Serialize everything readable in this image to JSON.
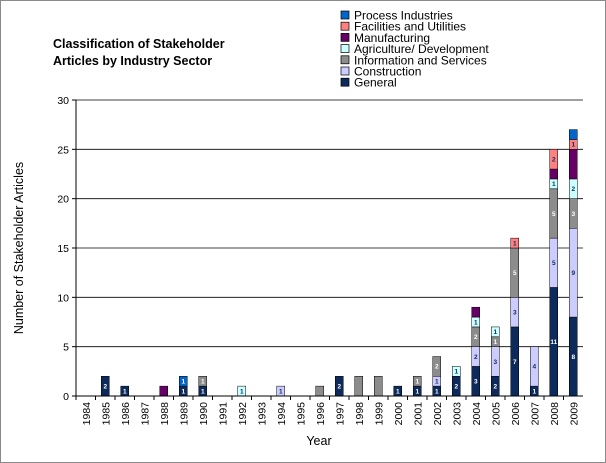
{
  "chart_data": {
    "type": "bar",
    "stacked": true,
    "title_lines": [
      "Classification of Stakeholder",
      "Articles by Industry Sector"
    ],
    "xlabel": "Year",
    "ylabel": "Number of Stakeholder Articles",
    "ylim": [
      0,
      30
    ],
    "yticks": [
      "0",
      "5",
      "10",
      "15",
      "20",
      "25",
      "30"
    ],
    "grid": true,
    "legend_position": "top-right",
    "categories": [
      "1984",
      "1985",
      "1986",
      "1987",
      "1988",
      "1989",
      "1990",
      "1991",
      "1992",
      "1993",
      "1994",
      "1995",
      "1996",
      "1997",
      "1998",
      "1999",
      "2000",
      "2001",
      "2002",
      "2003",
      "2004",
      "2005",
      "2006",
      "2007",
      "2008",
      "2009"
    ],
    "series": [
      {
        "name": "General",
        "color": "#0d2a5c",
        "values": [
          0,
          2,
          1,
          0,
          0,
          1,
          1,
          0,
          0,
          0,
          0,
          0,
          0,
          2,
          0,
          0,
          1,
          1,
          1,
          2,
          3,
          2,
          7,
          1,
          11,
          8
        ]
      },
      {
        "name": "Construction",
        "color": "#ccccff",
        "values": [
          0,
          0,
          0,
          0,
          0,
          0,
          0,
          0,
          0,
          0,
          1,
          0,
          0,
          0,
          0,
          0,
          0,
          0,
          1,
          0,
          2,
          3,
          3,
          4,
          5,
          9
        ]
      },
      {
        "name": "Information and Services",
        "color": "#8c8c8c",
        "values": [
          0,
          0,
          0,
          0,
          0,
          0,
          1,
          0,
          0,
          0,
          0,
          0,
          1,
          0,
          2,
          2,
          0,
          1,
          2,
          0,
          2,
          1,
          5,
          0,
          5,
          3
        ]
      },
      {
        "name": "Agriculture/ Development",
        "color": "#ccffff",
        "values": [
          0,
          0,
          0,
          0,
          0,
          0,
          0,
          0,
          1,
          0,
          0,
          0,
          0,
          0,
          0,
          0,
          0,
          0,
          0,
          1,
          1,
          1,
          0,
          0,
          1,
          2
        ]
      },
      {
        "name": "Manufacturing",
        "color": "#660066",
        "values": [
          0,
          0,
          0,
          0,
          1,
          0,
          0,
          0,
          0,
          0,
          0,
          0,
          0,
          0,
          0,
          0,
          0,
          0,
          0,
          0,
          1,
          0,
          0,
          0,
          1,
          3
        ]
      },
      {
        "name": "Facilities and Utilities",
        "color": "#ff8080",
        "values": [
          0,
          0,
          0,
          0,
          0,
          0,
          0,
          0,
          0,
          0,
          0,
          0,
          0,
          0,
          0,
          0,
          0,
          0,
          0,
          0,
          0,
          0,
          1,
          0,
          2,
          1
        ]
      },
      {
        "name": "Process Industries",
        "color": "#0066cc",
        "values": [
          0,
          0,
          0,
          0,
          0,
          1,
          0,
          0,
          0,
          0,
          0,
          0,
          0,
          0,
          0,
          0,
          0,
          0,
          0,
          0,
          0,
          0,
          0,
          0,
          0,
          1
        ]
      }
    ],
    "labels_hidden_on": [
      {
        "series": "Information and Services",
        "category": "1996"
      },
      {
        "series": "Information and Services",
        "category": "1998"
      },
      {
        "series": "Information and Services",
        "category": "1999"
      },
      {
        "series": "Manufacturing",
        "category": "1988"
      },
      {
        "series": "Manufacturing",
        "category": "2004"
      },
      {
        "series": "Manufacturing",
        "category": "2008"
      },
      {
        "series": "Manufacturing",
        "category": "2009"
      },
      {
        "series": "Process Industries",
        "category": "2009"
      }
    ]
  }
}
